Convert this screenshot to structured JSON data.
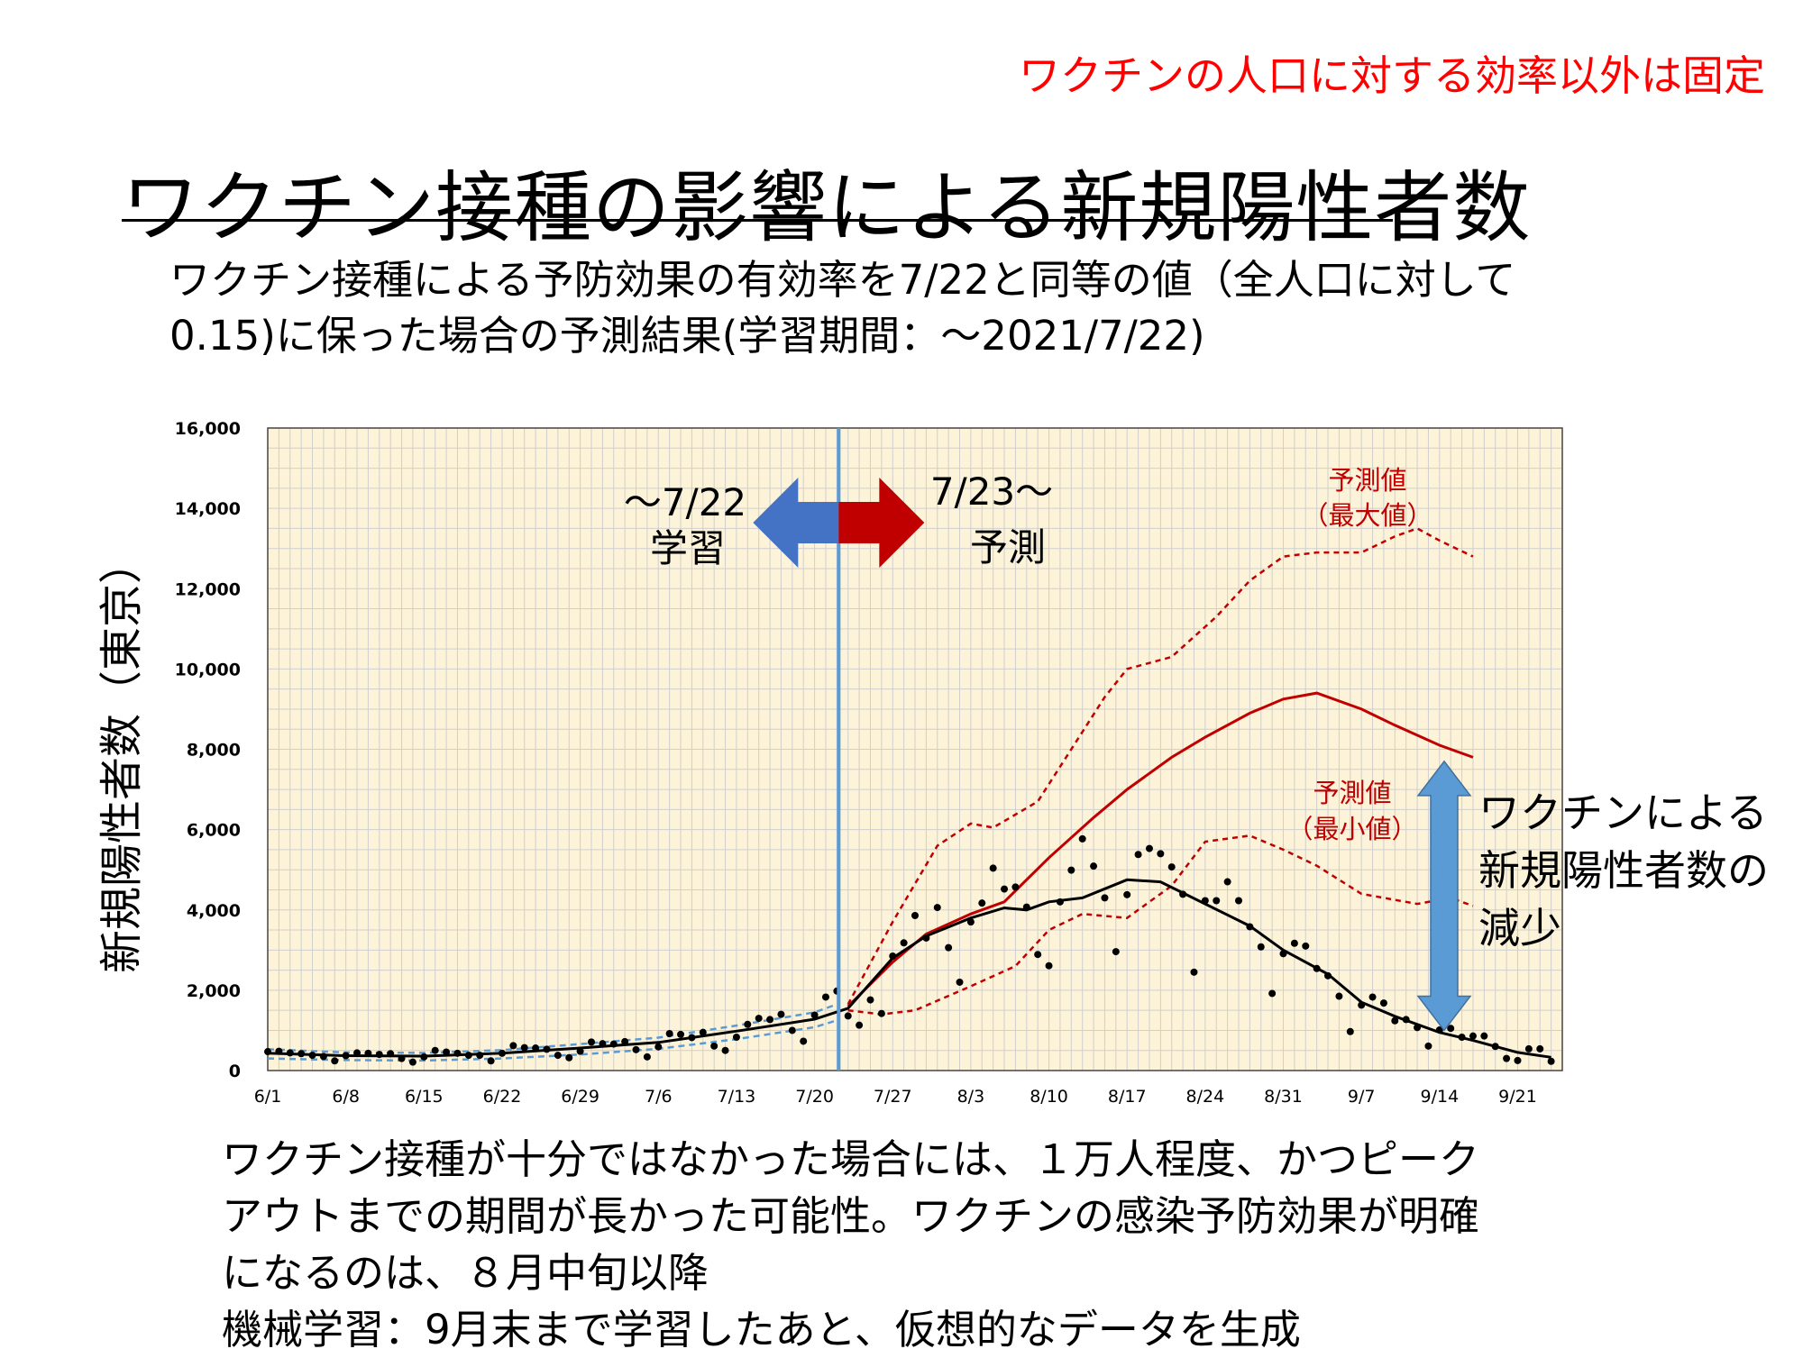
{
  "header": {
    "note": "ワクチンの人口に対する効率以外は固定",
    "title": "ワクチン接種の影響による新規陽性者数",
    "subtitle_lines": [
      "ワクチン接種による予防効果の有効率を7/22と同等の値（全人口に対して",
      "0.15)に保った場合の予測結果(学習期間：～2021/7/22)"
    ]
  },
  "footer": {
    "lines": [
      "ワクチン接種が十分ではなかった場合には、１万人程度、かつピーク",
      "アウトまでの期間が長かった可能性。ワクチンの感染予防効果が明確",
      "になるのは、８月中旬以降",
      "機械学習：9月末まで学習したあと、仮想的なデータを生成"
    ]
  },
  "colors": {
    "plot_background": "#fdf3d8",
    "grid": "#cfcfcf",
    "divider_line": "#5b9bd5",
    "learn_arrow": "#4472c4",
    "predict_arrow": "#c00000",
    "prediction_line": "#c00000",
    "observed_points": "#000000",
    "fit_line": "#000000",
    "fit_band": "#5b9bd5",
    "reduction_arrow": "#5b9bd5"
  },
  "chart_data": {
    "type": "line",
    "ylabel": "新規陽性者数（東京）",
    "xlabel": "",
    "x_start": "2021-06-01",
    "x_end": "2021-09-25",
    "ylim": [
      0,
      16000
    ],
    "yticks": [
      "0",
      "2,000",
      "4,000",
      "6,000",
      "8,000",
      "10,000",
      "12,000",
      "14,000",
      "16,000"
    ],
    "xticks": [
      "6/1",
      "6/8",
      "6/15",
      "6/22",
      "6/29",
      "7/6",
      "7/13",
      "7/20",
      "7/27",
      "8/3",
      "8/10",
      "8/17",
      "8/24",
      "8/31",
      "9/7",
      "9/14",
      "9/21"
    ],
    "grid": true,
    "divider_date": "7/22",
    "annotations": {
      "learn_label": [
        "～7/22",
        "学習"
      ],
      "predict_label": [
        "7/23～",
        "予測"
      ],
      "max_label": [
        "予測値",
        "（最大値）"
      ],
      "min_label": [
        "予測値",
        "（最小値）"
      ],
      "reduction_label": [
        "ワクチンによる",
        "新規陽性者数の",
        "減少"
      ]
    },
    "reduction_range": [
      1000,
      7700
    ],
    "series": [
      {
        "style": "observed_points",
        "points": [
          [
            "6/1",
            470
          ],
          [
            "6/2",
            480
          ],
          [
            "6/3",
            440
          ],
          [
            "6/4",
            420
          ],
          [
            "6/5",
            380
          ],
          [
            "6/6",
            350
          ],
          [
            "6/7",
            240
          ],
          [
            "6/8",
            370
          ],
          [
            "6/9",
            440
          ],
          [
            "6/10",
            430
          ],
          [
            "6/11",
            400
          ],
          [
            "6/12",
            420
          ],
          [
            "6/13",
            300
          ],
          [
            "6/14",
            210
          ],
          [
            "6/15",
            340
          ],
          [
            "6/16",
            500
          ],
          [
            "6/17",
            460
          ],
          [
            "6/18",
            430
          ],
          [
            "6/19",
            380
          ],
          [
            "6/20",
            380
          ],
          [
            "6/21",
            240
          ],
          [
            "6/22",
            430
          ],
          [
            "6/23",
            620
          ],
          [
            "6/24",
            570
          ],
          [
            "6/25",
            560
          ],
          [
            "6/26",
            530
          ],
          [
            "6/27",
            380
          ],
          [
            "6/28",
            320
          ],
          [
            "6/29",
            480
          ],
          [
            "6/30",
            710
          ],
          [
            "7/1",
            670
          ],
          [
            "7/2",
            660
          ],
          [
            "7/3",
            720
          ],
          [
            "7/4",
            520
          ],
          [
            "7/5",
            340
          ],
          [
            "7/6",
            590
          ],
          [
            "7/7",
            920
          ],
          [
            "7/8",
            900
          ],
          [
            "7/9",
            820
          ],
          [
            "7/10",
            950
          ],
          [
            "7/11",
            610
          ],
          [
            "7/12",
            500
          ],
          [
            "7/13",
            830
          ],
          [
            "7/14",
            1150
          ],
          [
            "7/15",
            1300
          ],
          [
            "7/16",
            1270
          ],
          [
            "7/17",
            1400
          ],
          [
            "7/18",
            1000
          ],
          [
            "7/19",
            730
          ],
          [
            "7/20",
            1380
          ],
          [
            "7/21",
            1830
          ],
          [
            "7/22",
            1980
          ],
          [
            "7/23",
            1360
          ],
          [
            "7/24",
            1130
          ],
          [
            "7/25",
            1760
          ],
          [
            "7/26",
            1420
          ],
          [
            "7/27",
            2850
          ],
          [
            "7/28",
            3180
          ],
          [
            "7/29",
            3860
          ],
          [
            "7/30",
            3300
          ],
          [
            "7/31",
            4060
          ],
          [
            "8/1",
            3060
          ],
          [
            "8/2",
            2200
          ],
          [
            "8/3",
            3700
          ],
          [
            "8/4",
            4170
          ],
          [
            "8/5",
            5040
          ],
          [
            "8/6",
            4520
          ],
          [
            "8/7",
            4570
          ],
          [
            "8/8",
            4070
          ],
          [
            "8/9",
            2890
          ],
          [
            "8/10",
            2610
          ],
          [
            "8/11",
            4200
          ],
          [
            "8/12",
            4990
          ],
          [
            "8/13",
            5770
          ],
          [
            "8/14",
            5090
          ],
          [
            "8/15",
            4300
          ],
          [
            "8/16",
            2960
          ],
          [
            "8/17",
            4380
          ],
          [
            "8/18",
            5380
          ],
          [
            "8/19",
            5530
          ],
          [
            "8/20",
            5400
          ],
          [
            "8/21",
            5070
          ],
          [
            "8/22",
            4390
          ],
          [
            "8/23",
            2450
          ],
          [
            "8/24",
            4230
          ],
          [
            "8/25",
            4230
          ],
          [
            "8/26",
            4700
          ],
          [
            "8/27",
            4230
          ],
          [
            "8/28",
            3580
          ],
          [
            "8/29",
            3080
          ],
          [
            "8/30",
            1920
          ],
          [
            "8/31",
            2910
          ],
          [
            "9/1",
            3170
          ],
          [
            "9/2",
            3100
          ],
          [
            "9/3",
            2540
          ],
          [
            "9/4",
            2360
          ],
          [
            "9/5",
            1850
          ],
          [
            "9/6",
            970
          ],
          [
            "9/7",
            1630
          ],
          [
            "9/8",
            1830
          ],
          [
            "9/9",
            1680
          ],
          [
            "9/10",
            1240
          ],
          [
            "9/11",
            1270
          ],
          [
            "9/12",
            1070
          ],
          [
            "9/13",
            610
          ],
          [
            "9/14",
            1010
          ],
          [
            "9/15",
            1050
          ],
          [
            "9/16",
            830
          ],
          [
            "9/17",
            860
          ],
          [
            "9/18",
            860
          ],
          [
            "9/19",
            600
          ],
          [
            "9/20",
            300
          ],
          [
            "9/21",
            250
          ],
          [
            "9/22",
            540
          ],
          [
            "9/23",
            540
          ],
          [
            "9/24",
            230
          ]
        ]
      },
      {
        "style": "fit_line",
        "points": [
          [
            "6/1",
            430
          ],
          [
            "6/8",
            370
          ],
          [
            "6/15",
            360
          ],
          [
            "6/22",
            430
          ],
          [
            "6/29",
            560
          ],
          [
            "7/6",
            700
          ],
          [
            "7/13",
            980
          ],
          [
            "7/20",
            1280
          ],
          [
            "7/23",
            1550
          ],
          [
            "7/27",
            2800
          ],
          [
            "7/30",
            3350
          ],
          [
            "8/3",
            3800
          ],
          [
            "8/6",
            4050
          ],
          [
            "8/8",
            4000
          ],
          [
            "8/10",
            4200
          ],
          [
            "8/13",
            4300
          ],
          [
            "8/17",
            4750
          ],
          [
            "8/20",
            4700
          ],
          [
            "8/24",
            4150
          ],
          [
            "8/28",
            3600
          ],
          [
            "8/31",
            3000
          ],
          [
            "9/4",
            2400
          ],
          [
            "9/7",
            1700
          ],
          [
            "9/10",
            1350
          ],
          [
            "9/14",
            950
          ],
          [
            "9/17",
            750
          ],
          [
            "9/21",
            450
          ],
          [
            "9/24",
            330
          ]
        ]
      },
      {
        "style": "fit_band",
        "points": [
          [
            "6/1",
            530
          ],
          [
            "6/8",
            450
          ],
          [
            "6/15",
            440
          ],
          [
            "6/22",
            510
          ],
          [
            "6/29",
            660
          ],
          [
            "7/6",
            820
          ],
          [
            "7/13",
            1120
          ],
          [
            "7/20",
            1450
          ],
          [
            "7/22",
            1650
          ]
        ]
      },
      {
        "style": "fit_band",
        "points": [
          [
            "6/1",
            300
          ],
          [
            "6/8",
            260
          ],
          [
            "6/15",
            250
          ],
          [
            "6/22",
            300
          ],
          [
            "6/29",
            400
          ],
          [
            "7/6",
            540
          ],
          [
            "7/13",
            780
          ],
          [
            "7/20",
            1080
          ],
          [
            "7/22",
            1250
          ]
        ]
      },
      {
        "style": "prediction_mid",
        "points": [
          [
            "7/23",
            1600
          ],
          [
            "7/27",
            2700
          ],
          [
            "7/30",
            3400
          ],
          [
            "8/3",
            3900
          ],
          [
            "8/6",
            4200
          ],
          [
            "8/10",
            5300
          ],
          [
            "8/14",
            6300
          ],
          [
            "8/17",
            7000
          ],
          [
            "8/21",
            7800
          ],
          [
            "8/24",
            8300
          ],
          [
            "8/28",
            8900
          ],
          [
            "8/31",
            9250
          ],
          [
            "9/3",
            9400
          ],
          [
            "9/7",
            9000
          ],
          [
            "9/10",
            8600
          ],
          [
            "9/14",
            8100
          ],
          [
            "9/17",
            7800
          ]
        ]
      },
      {
        "style": "prediction_max",
        "points": [
          [
            "7/23",
            1650
          ],
          [
            "7/27",
            3700
          ],
          [
            "7/31",
            5600
          ],
          [
            "8/3",
            6150
          ],
          [
            "8/5",
            6050
          ],
          [
            "8/9",
            6700
          ],
          [
            "8/12",
            8000
          ],
          [
            "8/15",
            9300
          ],
          [
            "8/17",
            10000
          ],
          [
            "8/21",
            10300
          ],
          [
            "8/25",
            11300
          ],
          [
            "8/28",
            12200
          ],
          [
            "8/31",
            12800
          ],
          [
            "9/3",
            12900
          ],
          [
            "9/7",
            12900
          ],
          [
            "9/10",
            13300
          ],
          [
            "9/12",
            13500
          ],
          [
            "9/14",
            13200
          ],
          [
            "9/17",
            12800
          ]
        ]
      },
      {
        "style": "prediction_min",
        "points": [
          [
            "7/23",
            1500
          ],
          [
            "7/26",
            1400
          ],
          [
            "7/29",
            1500
          ],
          [
            "8/3",
            2100
          ],
          [
            "8/7",
            2600
          ],
          [
            "8/10",
            3500
          ],
          [
            "8/13",
            3900
          ],
          [
            "8/17",
            3800
          ],
          [
            "8/21",
            4600
          ],
          [
            "8/24",
            5700
          ],
          [
            "8/28",
            5850
          ],
          [
            "8/31",
            5500
          ],
          [
            "9/3",
            5100
          ],
          [
            "9/7",
            4400
          ],
          [
            "9/10",
            4250
          ],
          [
            "9/12",
            4150
          ],
          [
            "9/15",
            4300
          ],
          [
            "9/17",
            4100
          ]
        ]
      }
    ]
  }
}
